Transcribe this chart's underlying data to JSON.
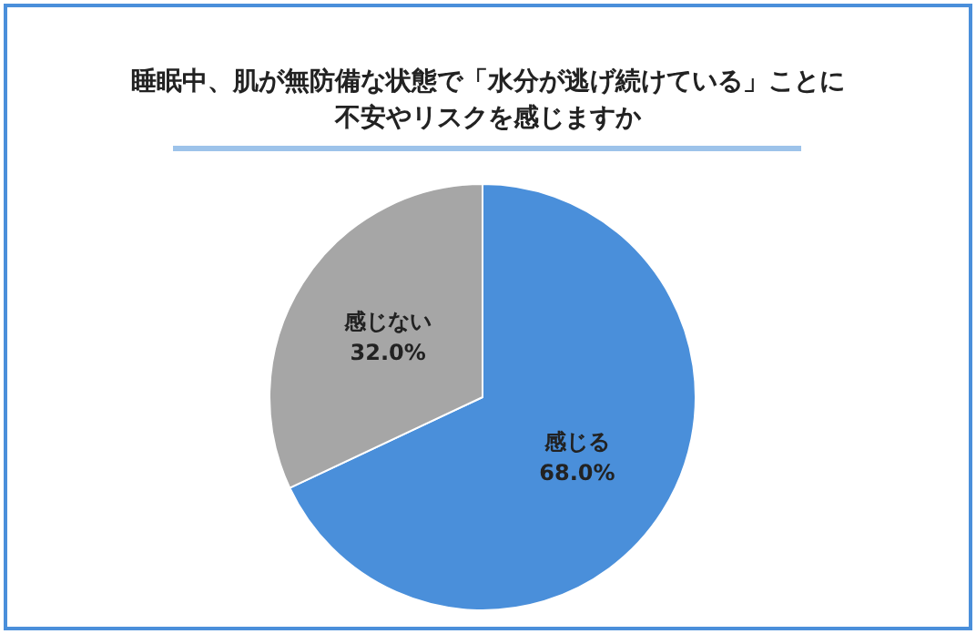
{
  "chart_data": {
    "type": "pie",
    "title": "睡眠中、肌が無防備な状態で「水分が逃げ続けている」ことに不安やリスクを感じますか",
    "categories": [
      "感じる",
      "感じない"
    ],
    "values": [
      68.0,
      32.0
    ],
    "colors": [
      "#4a8fda",
      "#a6a6a6"
    ],
    "value_labels": [
      "68.0%",
      "32.0%"
    ],
    "legend": false
  }
}
